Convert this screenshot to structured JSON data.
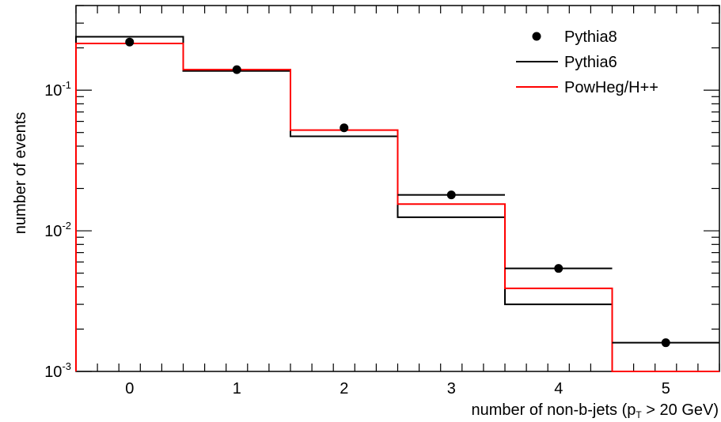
{
  "chart_data": {
    "type": "line",
    "ylabel": "number of events",
    "xlabel_main": "number of non-b-jets (p",
    "xlabel_sub": "T",
    "xlabel_tail": " > 20 GeV)",
    "xlim": [
      -0.5,
      5.5
    ],
    "ylim": [
      0.001,
      0.4
    ],
    "yscale": "log",
    "x_ticks": [
      "0",
      "1",
      "2",
      "3",
      "4",
      "5"
    ],
    "y_ticks": [
      {
        "base": "10",
        "exp": "-3",
        "value": 0.001
      },
      {
        "base": "10",
        "exp": "-2",
        "value": 0.01
      },
      {
        "base": "10",
        "exp": "-1",
        "value": 0.1
      }
    ],
    "bin_edges": [
      -0.5,
      0.5,
      1.5,
      2.5,
      3.5,
      4.5,
      5.5
    ],
    "series": [
      {
        "name": "Pythia8",
        "style": "points",
        "color": "#000000",
        "x": [
          0,
          1,
          2,
          3,
          4,
          5
        ],
        "values": [
          0.22,
          0.14,
          0.054,
          0.018,
          0.0054,
          0.0016
        ],
        "xerr_bins": [
          3,
          4,
          5
        ]
      },
      {
        "name": "Pythia6",
        "style": "histogram",
        "color": "#000000",
        "values": [
          0.24,
          0.137,
          0.047,
          0.0125,
          0.003,
          0.001
        ]
      },
      {
        "name": "PowHeg/H++",
        "style": "histogram",
        "color": "#ff0000",
        "values": [
          0.215,
          0.14,
          0.052,
          0.0155,
          0.0039,
          0.001
        ]
      }
    ],
    "legend": "top-right"
  }
}
